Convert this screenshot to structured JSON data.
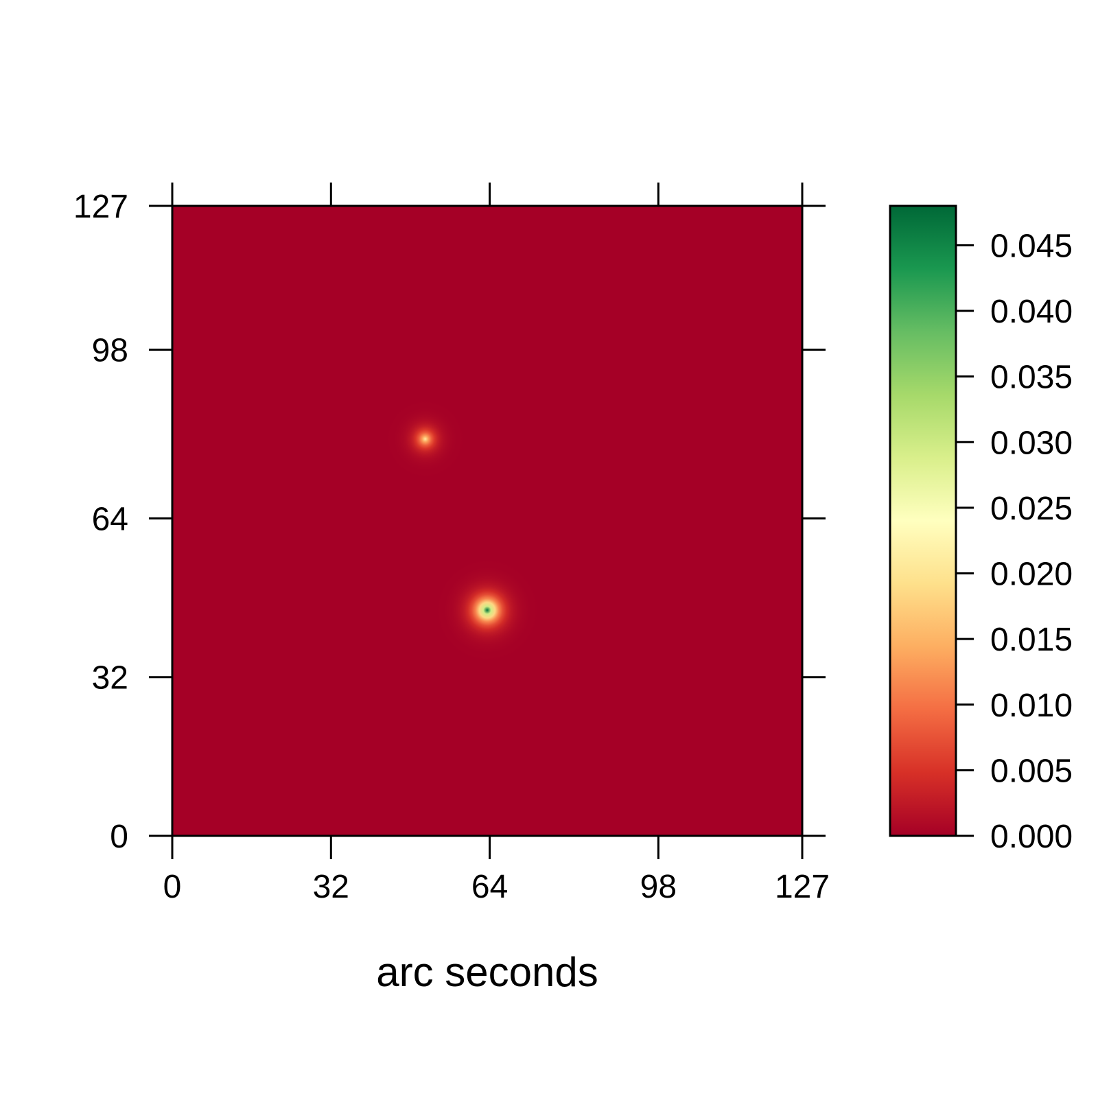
{
  "chart_data": {
    "type": "heatmap",
    "title": "",
    "xlabel": "arc seconds",
    "ylabel": "",
    "xlim": [
      0,
      127
    ],
    "ylim": [
      0,
      127
    ],
    "x_ticks": [
      0,
      32,
      64,
      98,
      127
    ],
    "y_ticks": [
      0,
      32,
      64,
      98,
      127
    ],
    "x_tick_labels": [
      "0",
      "32",
      "64",
      "98",
      "127"
    ],
    "y_tick_labels": [
      "0",
      "32",
      "64",
      "98",
      "127"
    ],
    "background_value": 0.0,
    "sources": [
      {
        "x": 63.5,
        "y": 45.5,
        "peak": 0.047
      },
      {
        "x": 51,
        "y": 80,
        "peak": 0.021
      }
    ],
    "colorbar": {
      "range": [
        0.0,
        0.048
      ],
      "ticks": [
        0.0,
        0.005,
        0.01,
        0.015,
        0.02,
        0.025,
        0.03,
        0.035,
        0.04,
        0.045
      ],
      "tick_labels": [
        "0.000",
        "0.005",
        "0.010",
        "0.015",
        "0.020",
        "0.025",
        "0.030",
        "0.035",
        "0.040",
        "0.045"
      ],
      "colors": [
        "#a50026",
        "#d73027",
        "#f46d43",
        "#fdae61",
        "#fee08b",
        "#ffffbf",
        "#d9ef8b",
        "#a6d96a",
        "#66bd63",
        "#1a9850",
        "#006837"
      ]
    }
  }
}
